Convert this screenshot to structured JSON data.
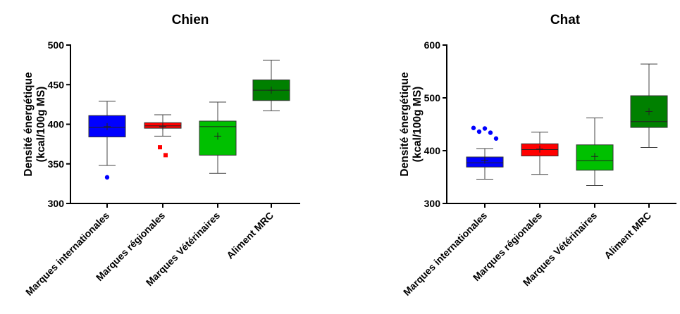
{
  "chart_data": [
    {
      "type": "boxplot",
      "title": "Chien",
      "ylabel": [
        "Densité énergétique",
        "(kcal/100g MS)"
      ],
      "ylim": [
        300,
        500
      ],
      "yticks": [
        300,
        350,
        400,
        450,
        500
      ],
      "categories": [
        "Marques internationales",
        "Marques régionales",
        "Marques Vétérinaires",
        "Aliment MRC"
      ],
      "boxes": [
        {
          "color": "#0000FF",
          "q1": 384,
          "median": 396,
          "q3": 411,
          "whisker_low": 348,
          "whisker_high": 429,
          "mean": 397,
          "outliers": [
            333
          ]
        },
        {
          "color": "#FF0000",
          "q1": 395,
          "median": 398,
          "q3": 402,
          "whisker_low": 385,
          "whisker_high": 412,
          "mean": 397,
          "outliers": [
            371,
            361
          ]
        },
        {
          "color": "#00C000",
          "q1": 361,
          "median": 397,
          "q3": 404,
          "whisker_low": 338,
          "whisker_high": 428,
          "mean": 385,
          "outliers": []
        },
        {
          "color": "#008000",
          "q1": 430,
          "median": 443,
          "q3": 456,
          "whisker_low": 417,
          "whisker_high": 481,
          "mean": 443,
          "outliers": []
        }
      ]
    },
    {
      "type": "boxplot",
      "title": "Chat",
      "ylabel": [
        "Densité énergétique",
        "(kcal/100g MS)"
      ],
      "ylim": [
        300,
        600
      ],
      "yticks": [
        300,
        400,
        500,
        600
      ],
      "categories": [
        "Marques internationales",
        "Marques régionales",
        "Marques Vétérinaires",
        "Aliment MRC"
      ],
      "boxes": [
        {
          "color": "#0000FF",
          "q1": 369,
          "median": 377,
          "q3": 388,
          "whisker_low": 346,
          "whisker_high": 404,
          "mean": 382,
          "outliers": [
            443,
            436,
            442,
            434,
            423
          ]
        },
        {
          "color": "#FF0000",
          "q1": 390,
          "median": 402,
          "q3": 413,
          "whisker_low": 355,
          "whisker_high": 435,
          "mean": 403,
          "outliers": []
        },
        {
          "color": "#00C000",
          "q1": 363,
          "median": 381,
          "q3": 411,
          "whisker_low": 334,
          "whisker_high": 462,
          "mean": 389,
          "outliers": []
        },
        {
          "color": "#008000",
          "q1": 444,
          "median": 455,
          "q3": 504,
          "whisker_low": 406,
          "whisker_high": 564,
          "mean": 474,
          "outliers": []
        }
      ]
    }
  ]
}
